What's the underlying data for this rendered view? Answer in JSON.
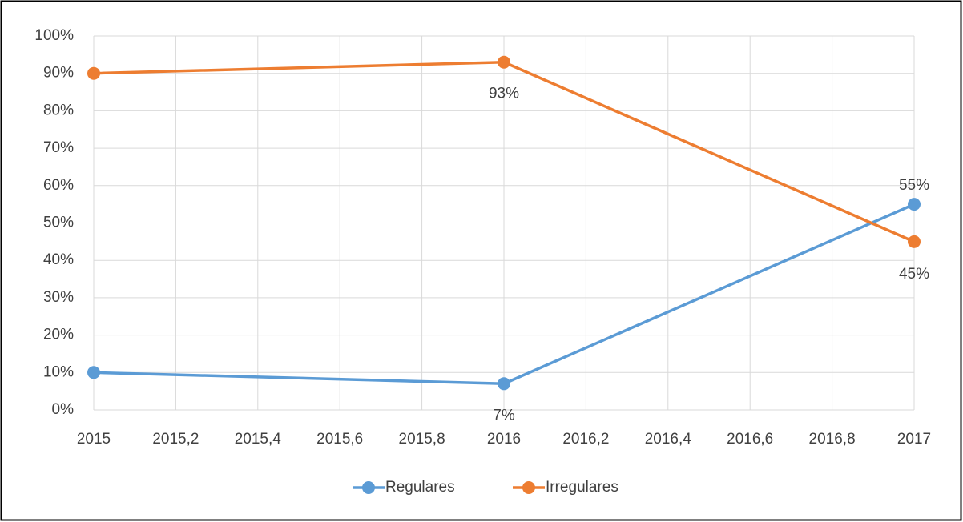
{
  "chart_data": {
    "type": "line",
    "x": [
      2015,
      2016,
      2017
    ],
    "series": [
      {
        "name": "Regulares",
        "color": "#5b9bd5",
        "values": [
          10,
          7,
          55
        ],
        "value_labels": [
          null,
          "7%",
          "55%"
        ]
      },
      {
        "name": "Irregulares",
        "color": "#ed7d31",
        "values": [
          90,
          93,
          45
        ],
        "value_labels": [
          null,
          "93%",
          "45%"
        ]
      }
    ],
    "xlim": [
      2015,
      2017
    ],
    "xticks": [
      2015,
      {
        "value": 2015.2,
        "label": "2015,2"
      },
      {
        "value": 2015.4,
        "label": "2015,4"
      },
      {
        "value": 2015.6,
        "label": "2015,6"
      },
      {
        "value": 2015.8,
        "label": "2015,8"
      },
      2016,
      {
        "value": 2016.2,
        "label": "2016,2"
      },
      {
        "value": 2016.4,
        "label": "2016,4"
      },
      {
        "value": 2016.6,
        "label": "2016,6"
      },
      {
        "value": 2016.8,
        "label": "2016,8"
      },
      2017
    ],
    "ylim": [
      0,
      100
    ],
    "yticks": [
      {
        "value": 0,
        "label": "0%"
      },
      {
        "value": 10,
        "label": "10%"
      },
      {
        "value": 20,
        "label": "20%"
      },
      {
        "value": 30,
        "label": "30%"
      },
      {
        "value": 40,
        "label": "40%"
      },
      {
        "value": 50,
        "label": "50%"
      },
      {
        "value": 60,
        "label": "60%"
      },
      {
        "value": 70,
        "label": "70%"
      },
      {
        "value": 80,
        "label": "80%"
      },
      {
        "value": 90,
        "label": "90%"
      },
      {
        "value": 100,
        "label": "100%"
      }
    ],
    "grid": true,
    "legend": "bottom"
  }
}
